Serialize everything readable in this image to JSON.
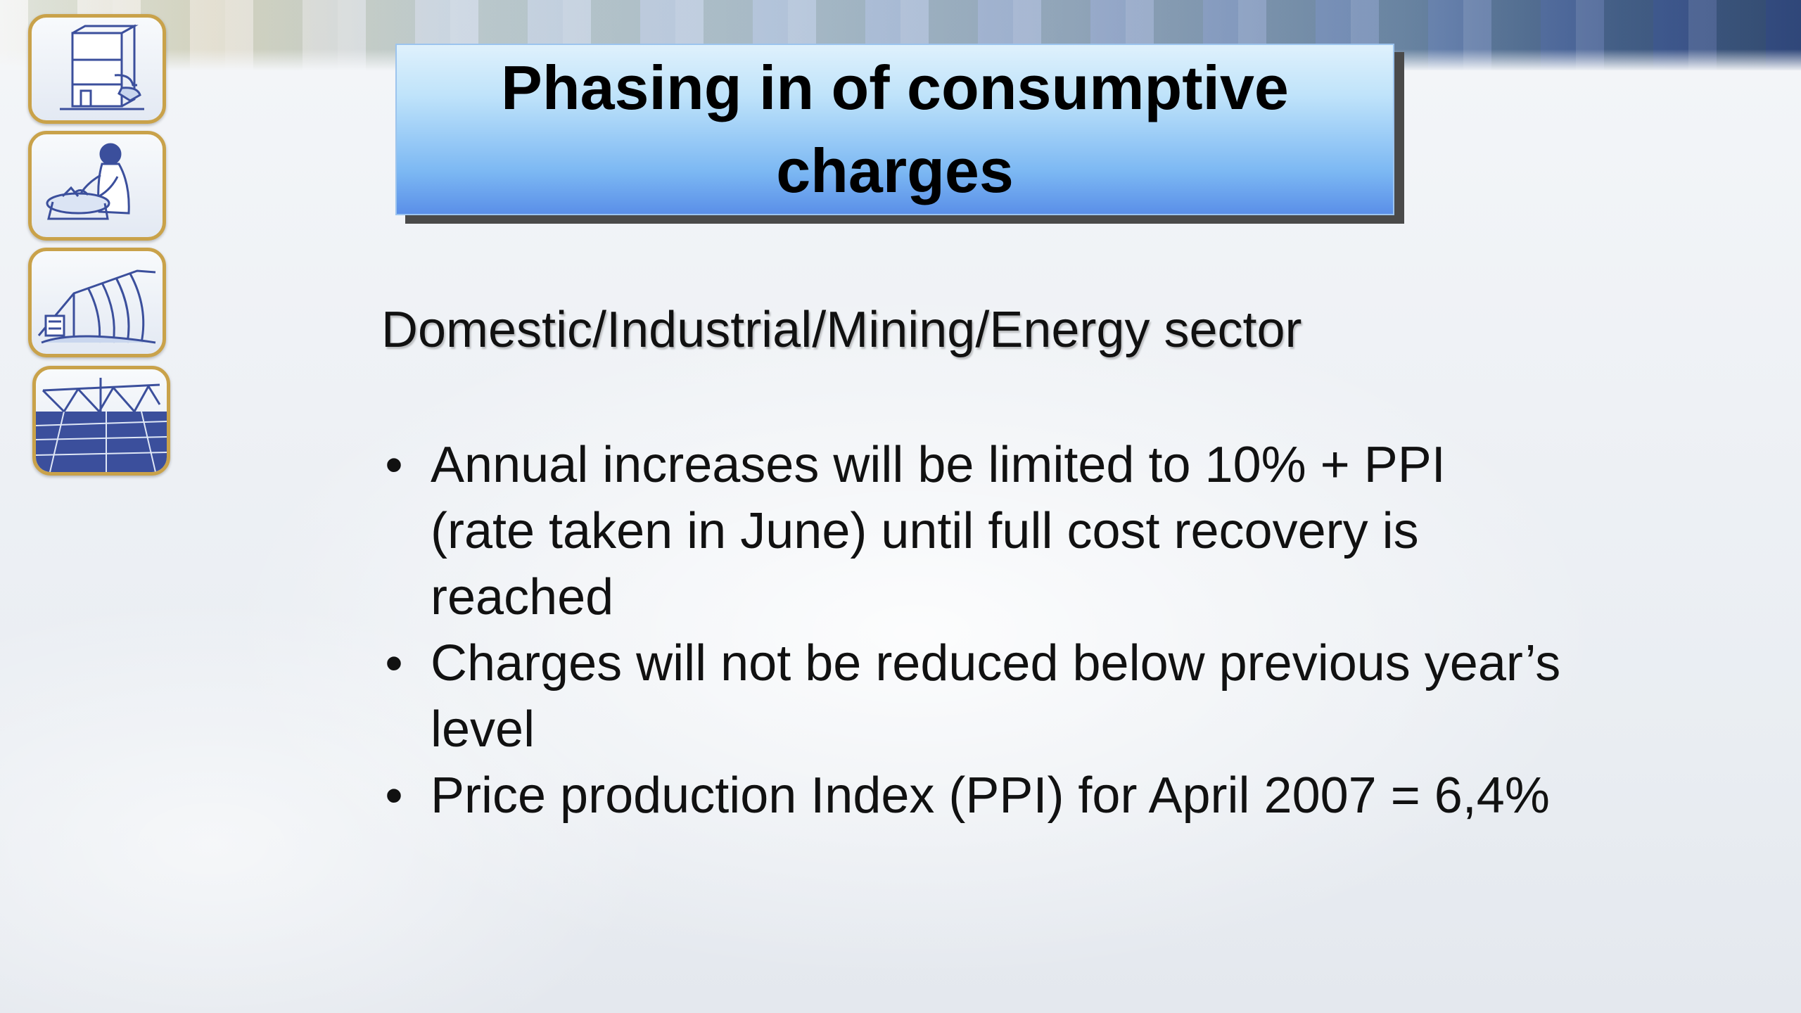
{
  "slide": {
    "title": "Phasing in of consumptive charges",
    "subheading": "Domestic/Industrial/Mining/Energy sector",
    "bullet_symbol": "•",
    "bullets": [
      "Annual increases will be limited to 10% + PPI (rate taken in June) until full cost recovery is reached",
      "Charges will not be reduced below previous year’s level",
      "Price production Index (PPI) for April 2007 = 6,4%"
    ]
  },
  "theme": {
    "title_gradient_top": "#dff1fc",
    "title_gradient_bottom": "#5a8fe8",
    "icon_frame_color": "#c9a24a",
    "icon_ink_color": "#3b4f9c"
  },
  "side_icons": [
    {
      "icon": "water-tank-tap-icon"
    },
    {
      "icon": "person-washing-icon"
    },
    {
      "icon": "dam-spillway-icon"
    },
    {
      "icon": "irrigation-field-icon"
    }
  ]
}
